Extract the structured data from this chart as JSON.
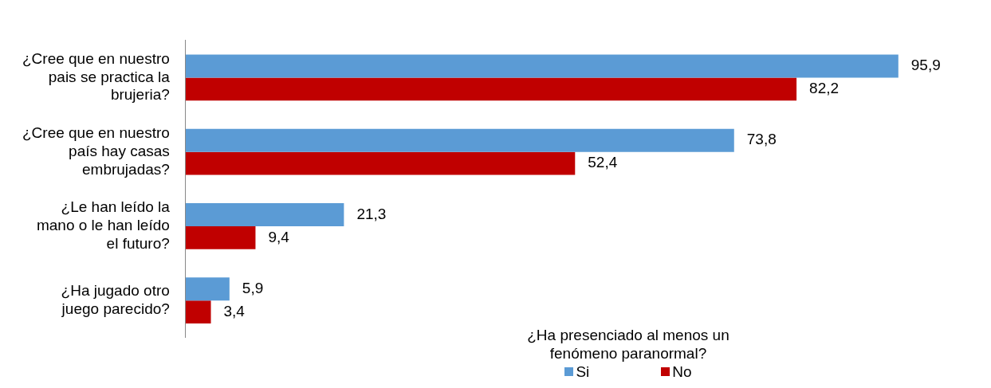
{
  "chart_data": {
    "type": "bar",
    "orientation": "horizontal",
    "categories": [
      "¿Cree que en nuestro pais se practica la brujeria?",
      "¿Cree que en nuestro país hay casas embrujadas?",
      "¿Le han leído la mano o le han leído el futuro?",
      "¿Ha jugado otro juego parecido?"
    ],
    "series": [
      {
        "name": "Si",
        "color": "#5b9bd5",
        "values": [
          95.9,
          73.8,
          21.3,
          5.9
        ],
        "value_labels": [
          "95,9",
          "73,8",
          "21,3",
          "5,9"
        ]
      },
      {
        "name": "No",
        "color": "#c00000",
        "values": [
          82.2,
          52.4,
          9.4,
          3.4
        ],
        "value_labels": [
          "82,2",
          "52,4",
          "9,4",
          "3,4"
        ]
      }
    ],
    "tick_labels": "y",
    "grid": false,
    "legend": "bottom right",
    "legend_title": "¿Ha presenciado al menos un fenómeno paranormal?"
  }
}
